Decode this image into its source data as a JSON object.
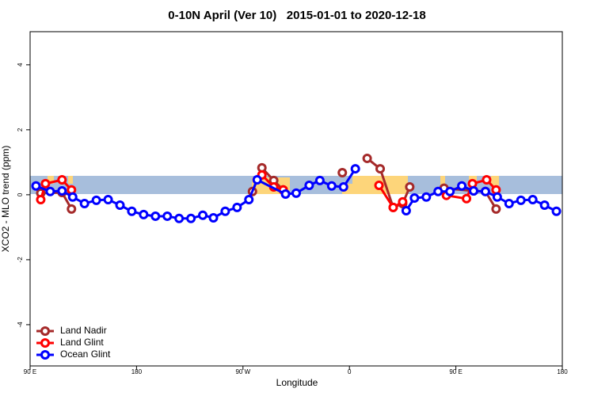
{
  "chart_data": {
    "type": "line",
    "title": "0-10N April (Ver 10)   2015-01-01 to 2020-12-18",
    "x_label": "Longitude",
    "y_label": "XCO2 - MLO trend (ppm)",
    "xlim": [
      90,
      540
    ],
    "xticks": [
      {
        "value": 90,
        "label": "90 E"
      },
      180,
      {
        "value": 270,
        "label": "90 W"
      },
      {
        "value": 360,
        "label": "0"
      },
      {
        "value": 450,
        "label": "90 E"
      },
      {
        "value": 540,
        "label": "180"
      }
    ],
    "ylim": [
      -5.27,
      5.02
    ],
    "yticks": [
      -4,
      -2,
      0,
      2,
      4
    ],
    "legend": "bottom-left",
    "series": [
      {
        "name": "Land Nadir",
        "color": "#a52a2a",
        "x": [
          99,
          117,
          125,
          null,
          278,
          286,
          296,
          304,
          null,
          354,
          null,
          375,
          386,
          397,
          405,
          411,
          null,
          440,
          465,
          475,
          484
        ],
        "values": [
          0.05,
          0.07,
          -0.44,
          null,
          0.1,
          0.83,
          0.44,
          0.15,
          null,
          0.68,
          null,
          1.12,
          0.8,
          -0.39,
          -0.27,
          0.24,
          null,
          0.2,
          0.12,
          0.1,
          -0.44
        ]
      },
      {
        "name": "Land Glint",
        "color": "#ff0000",
        "x": [
          99,
          103,
          117,
          125,
          null,
          286,
          296,
          304,
          null,
          385,
          397,
          405,
          null,
          442,
          459,
          464,
          476,
          484
        ],
        "values": [
          -0.15,
          0.34,
          0.46,
          0.15,
          null,
          0.61,
          0.24,
          0.15,
          null,
          0.29,
          -0.39,
          -0.22,
          null,
          -0.02,
          -0.12,
          0.34,
          0.46,
          0.15
        ]
      },
      {
        "name": "Ocean Glint",
        "color": "#0000ff",
        "x": [
          95,
          107,
          117,
          126,
          136,
          146,
          156,
          166,
          176,
          186,
          196,
          206,
          216,
          226,
          236,
          245,
          255,
          265,
          275,
          282,
          306,
          315,
          326,
          335,
          345,
          355,
          365,
          null,
          408,
          415,
          425,
          435,
          445,
          455,
          465,
          475,
          485,
          495,
          505,
          515,
          525,
          535
        ],
        "values": [
          0.27,
          0.1,
          0.12,
          -0.07,
          -0.27,
          -0.17,
          -0.15,
          -0.32,
          -0.51,
          -0.61,
          -0.66,
          -0.66,
          -0.73,
          -0.73,
          -0.63,
          -0.71,
          -0.51,
          -0.39,
          -0.15,
          0.46,
          0.02,
          0.05,
          0.29,
          0.44,
          0.27,
          0.24,
          0.8,
          null,
          -0.49,
          -0.1,
          -0.07,
          0.1,
          0.1,
          0.27,
          0.12,
          0.1,
          -0.07,
          -0.27,
          -0.17,
          -0.15,
          -0.32,
          -0.51
        ]
      }
    ]
  }
}
